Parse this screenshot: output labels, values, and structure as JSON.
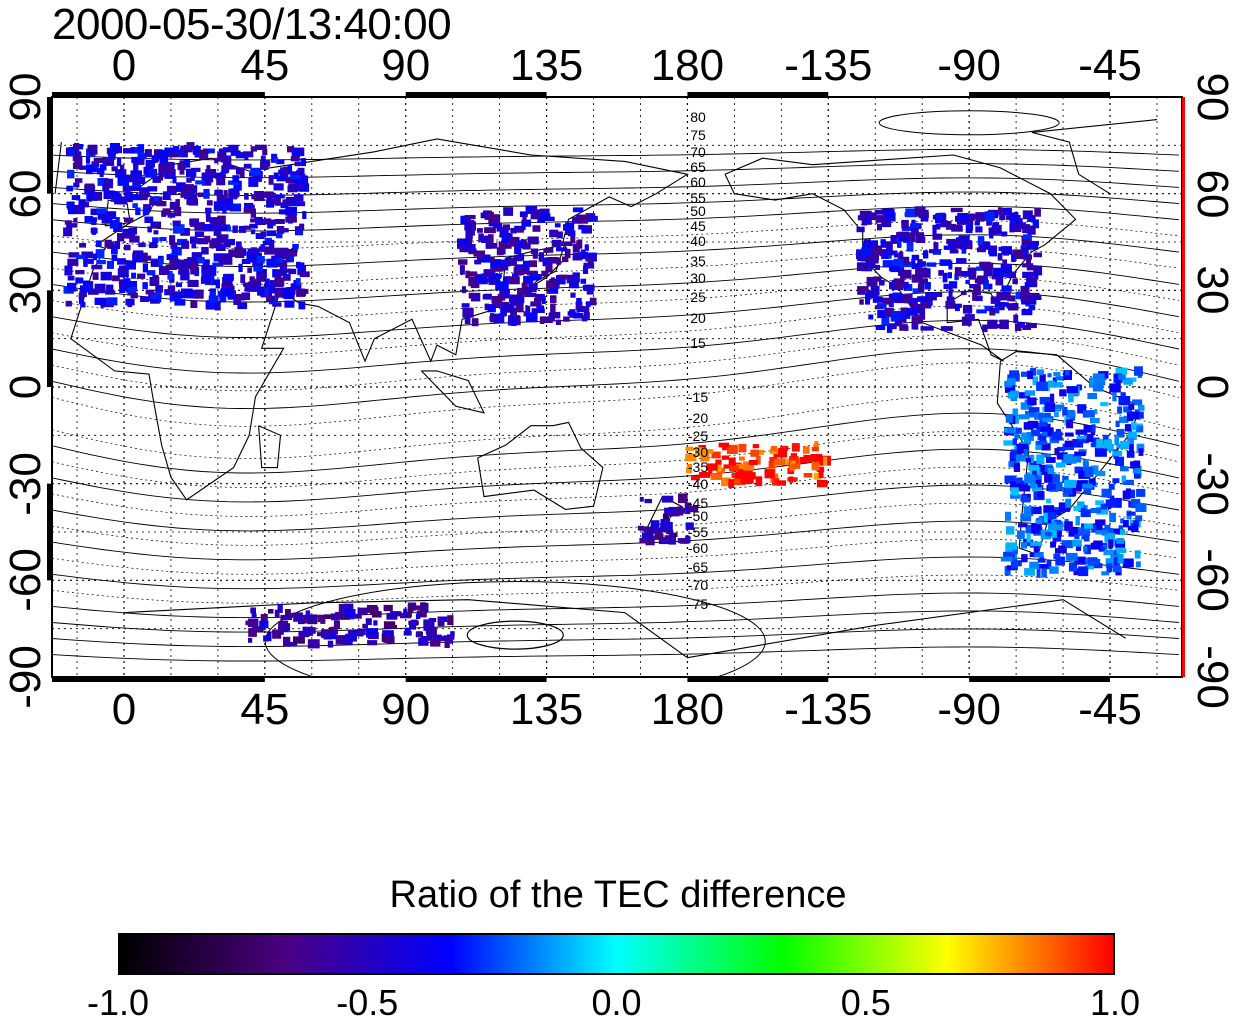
{
  "title": "2000-05-30/13:40:00",
  "axes": {
    "x_top_ticks": [
      "0",
      "45",
      "90",
      "135",
      "180",
      "-135",
      "-90",
      "-45"
    ],
    "x_bottom_ticks": [
      "0",
      "45",
      "90",
      "135",
      "180",
      "-135",
      "-90",
      "-45"
    ],
    "y_left_ticks": [
      "90",
      "60",
      "30",
      "0",
      "-30",
      "-60",
      "-90"
    ],
    "y_right_ticks": [
      "90",
      "60",
      "30",
      "0",
      "-30",
      "-60",
      "-90"
    ],
    "x_range": [
      -23,
      338
    ],
    "y_range": [
      -90,
      90
    ]
  },
  "contour_labels": {
    "north": [
      "80",
      "75",
      "70",
      "65",
      "60",
      "55",
      "50",
      "45",
      "40",
      "35",
      "30",
      "25",
      "20",
      "15"
    ],
    "south": [
      "-15",
      "-20",
      "-25",
      "-30",
      "-35",
      "-40",
      "-45",
      "-50",
      "-55",
      "-60",
      "-65",
      "-70",
      "-75"
    ]
  },
  "colorbar": {
    "title": "Ratio of the TEC difference",
    "ticks": [
      "-1.0",
      "-0.5",
      "0.0",
      "0.5",
      "1.0"
    ],
    "range": [
      -1.0,
      1.0
    ],
    "colors": [
      "#000000",
      "#4b0082",
      "#0000ff",
      "#00ffff",
      "#00ff00",
      "#ffff00",
      "#ff0000"
    ]
  },
  "map": {
    "grid": true,
    "background": "#ffffff",
    "border_color": "#000000",
    "right_border_accent": "#ff0000"
  },
  "data_regions": [
    {
      "id": "europe",
      "lon": [
        -18,
        58
      ],
      "lat": [
        25,
        75
      ],
      "ratio": -0.45
    },
    {
      "id": "east-asia",
      "lon": [
        108,
        150
      ],
      "lat": [
        20,
        55
      ],
      "ratio": -0.5
    },
    {
      "id": "north-america",
      "lon": [
        -125,
        -68
      ],
      "lat": [
        18,
        55
      ],
      "ratio": -0.45
    },
    {
      "id": "south-america",
      "lon": [
        -78,
        -35
      ],
      "lat": [
        -58,
        5
      ],
      "ratio": -0.25
    },
    {
      "id": "new-zealand",
      "lon": [
        165,
        182
      ],
      "lat": [
        -48,
        -34
      ],
      "ratio": -0.6
    },
    {
      "id": "antarctica-rim",
      "lon": [
        40,
        105
      ],
      "lat": [
        -80,
        -68
      ],
      "ratio": -0.55
    },
    {
      "id": "pacific-south",
      "lon": [
        180,
        225
      ],
      "lat": [
        -30,
        -18
      ],
      "ratio": 0.95
    }
  ]
}
